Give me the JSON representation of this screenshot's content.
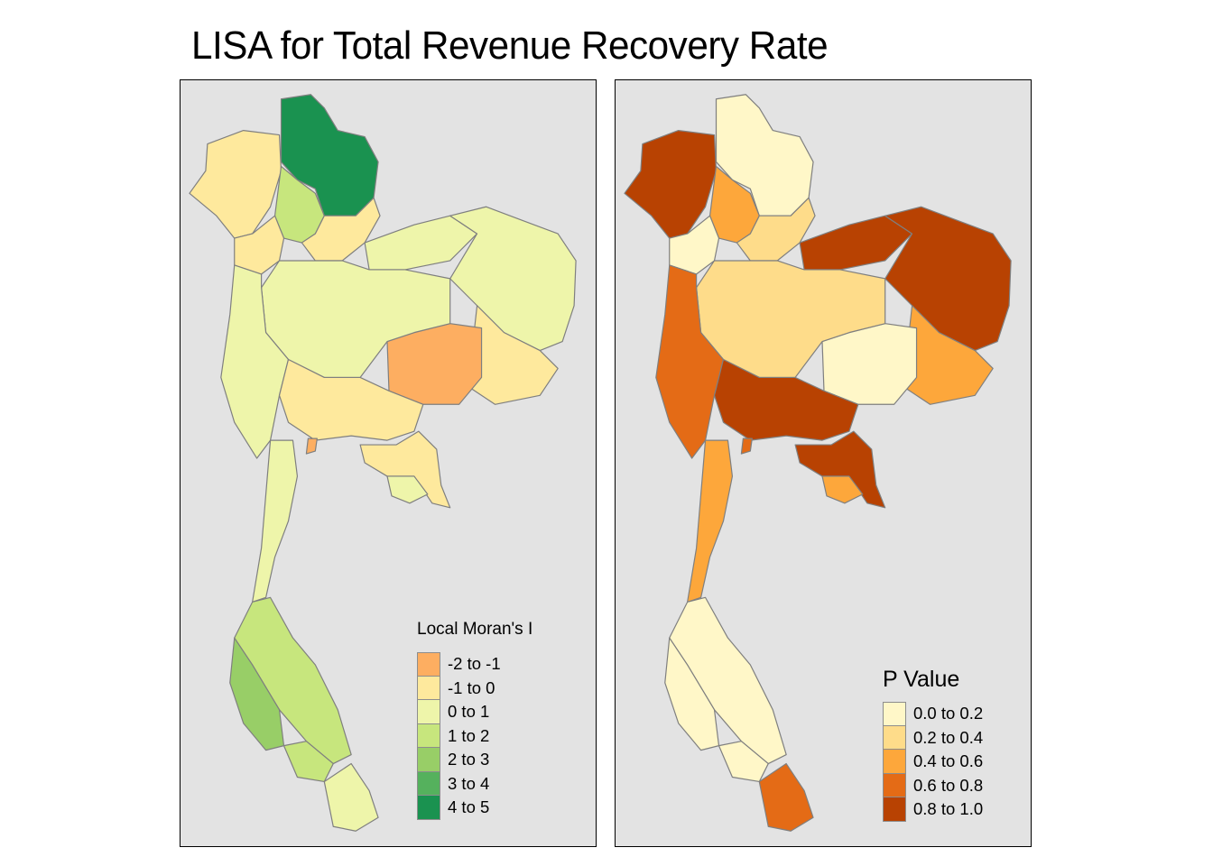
{
  "title": "LISA for Total Revenue Recovery Rate",
  "panels": [
    {
      "name": "local-morans-i",
      "legend": {
        "title": "Local Moran's I",
        "classes": [
          {
            "label": "-2 to -1",
            "color": "#fdae61"
          },
          {
            "label": "-1 to 0",
            "color": "#fee99d"
          },
          {
            "label": "0 to 1",
            "color": "#eef5aa"
          },
          {
            "label": "1 to 2",
            "color": "#c7e67d"
          },
          {
            "label": "2 to 3",
            "color": "#98ce67"
          },
          {
            "label": "3 to 4",
            "color": "#55b15d"
          },
          {
            "label": "4 to 5",
            "color": "#1a9250"
          }
        ]
      },
      "regions": {
        "north_far_west": 1,
        "north_west": 1,
        "north_top_cluster": 6,
        "north_mid_strip": 3,
        "north_east_strip": 1,
        "upper_central": 2,
        "central_plain": 2,
        "northeast": 2,
        "northeast_south": 1,
        "northeast_anomaly": 0,
        "bangkok_area": 1,
        "small_coastal": 0,
        "east_coast": 1,
        "east_lower": 2,
        "west": 2,
        "peninsula_upper": 2,
        "peninsula_mid": 3,
        "peninsula_west": 4,
        "peninsula_lower": 3,
        "deep_south": 2
      }
    },
    {
      "name": "p-value",
      "legend": {
        "title": "P Value",
        "classes": [
          {
            "label": "0.0 to 0.2",
            "color": "#fff7c8"
          },
          {
            "label": "0.2 to 0.4",
            "color": "#fedc8a"
          },
          {
            "label": "0.4 to 0.6",
            "color": "#fda73b"
          },
          {
            "label": "0.6 to 0.8",
            "color": "#e46b16"
          },
          {
            "label": "0.8 to 1.0",
            "color": "#b84202"
          }
        ]
      },
      "regions": {
        "north_far_west": 4,
        "north_west": 0,
        "north_top_cluster": 0,
        "north_mid_strip": 2,
        "north_east_strip": 1,
        "upper_central": 4,
        "central_plain": 1,
        "northeast": 4,
        "northeast_south": 2,
        "northeast_anomaly": 0,
        "bangkok_area": 4,
        "small_coastal": 3,
        "east_coast": 4,
        "east_lower": 2,
        "west": 3,
        "peninsula_upper": 2,
        "peninsula_mid": 0,
        "peninsula_west": 0,
        "peninsula_lower": 0,
        "deep_south": 3
      }
    }
  ]
}
